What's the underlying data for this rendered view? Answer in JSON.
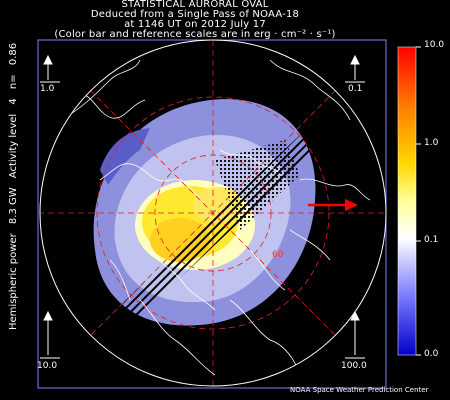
{
  "header": {
    "line1": "STATISTICAL AURORAL OVAL",
    "line2": "Deduced from a Single Pass of NOAA-18",
    "line3": "at 1146 UT on 2012 July 17",
    "line4": "(Color bar and reference scales are in erg · cm⁻² · s⁻¹)"
  },
  "side_info": {
    "power_label": "Hemispheric power",
    "power_value": "8.3 GW",
    "activity_label": "Activity level",
    "activity_value": "4",
    "n_label": "n=",
    "n_value": "0.86"
  },
  "reference_scales": {
    "top_left": "1.0",
    "top_right": "0.1",
    "bottom_left": "10.0",
    "bottom_right": "100.0"
  },
  "latitude_label": "60",
  "color_bar": {
    "ticks": [
      "10.0",
      "1.0",
      "0.1",
      "0.0"
    ],
    "colors": [
      "#ff0000",
      "#ff8800",
      "#ffd800",
      "#ffff99",
      "#ffffff",
      "#8080ff",
      "#0000cc"
    ]
  },
  "credit": "NOAA Space Weather Prediction Center",
  "colors": {
    "oval_blue": "#8d90dc",
    "oval_yellow": "#ffe830",
    "oval_orange": "#ffb040",
    "grid": "#e02020",
    "coast": "#ffffff",
    "sun_arrow": "#ff0000"
  }
}
